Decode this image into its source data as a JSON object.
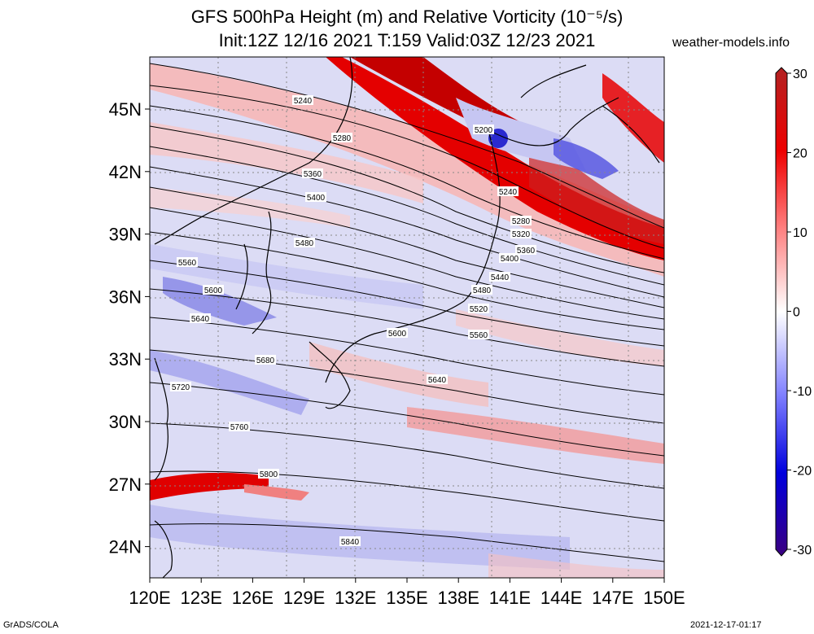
{
  "title_line1": "GFS 500hPa Height (m) and Relative Vorticity (10⁻⁵/s)",
  "title_line2": "Init:12Z 12/16 2021 T:159 Valid:03Z 12/23 2021",
  "site": "weather-models.info",
  "footer_left": "GrADS/COLA",
  "footer_right": "2021-12-17-01:17",
  "map": {
    "lon_range": [
      120,
      150
    ],
    "lat_range": [
      22.5,
      47.5
    ],
    "lon_ticks": [
      "120E",
      "123E",
      "126E",
      "129E",
      "132E",
      "135E",
      "138E",
      "141E",
      "144E",
      "147E",
      "150E"
    ],
    "lat_ticks": [
      "45N",
      "42N",
      "39N",
      "36N",
      "33N",
      "30N",
      "27N",
      "24N"
    ],
    "contour_labels": [
      "5200",
      "5240",
      "5240",
      "5280",
      "5280",
      "5320",
      "5360",
      "5360",
      "5400",
      "5400",
      "5440",
      "5480",
      "5480",
      "5520",
      "5560",
      "5560",
      "5600",
      "5600",
      "5640",
      "5640",
      "5680",
      "5720",
      "5760",
      "5800",
      "5840"
    ]
  },
  "colorbar": {
    "ticks": [
      "30",
      "20",
      "10",
      "0",
      "-10",
      "-20",
      "-30"
    ],
    "colors": [
      "#b22222",
      "#ee0000",
      "#ff7f7f",
      "#ffffff",
      "#8080ff",
      "#0000dd",
      "#3b0080"
    ]
  }
}
